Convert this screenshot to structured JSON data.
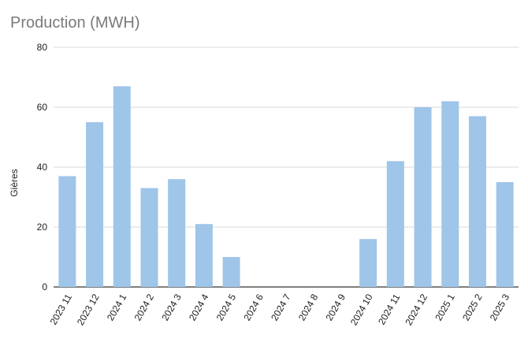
{
  "chart_data": {
    "type": "bar",
    "title": "Production (MWH)",
    "xlabel": "",
    "ylabel": "Gières",
    "ylim": [
      0,
      80
    ],
    "yticks": [
      0,
      20,
      40,
      60,
      80
    ],
    "grid": true,
    "categories": [
      "2023 11",
      "2023 12",
      "2024 1",
      "2024 2",
      "2024 3",
      "2024 4",
      "2024 5",
      "2024 6",
      "2024 7",
      "2024 8",
      "2024 9",
      "2024 10",
      "2024 11",
      "2024 12",
      "2025 1",
      "2025 2",
      "2025 3"
    ],
    "series": [
      {
        "values": [
          37,
          55,
          67,
          33,
          36,
          21,
          10,
          0,
          0,
          0,
          0,
          16,
          42,
          60,
          62,
          57,
          35
        ]
      }
    ],
    "colors": {
      "bar": "#9fc5e8",
      "grid": "#d9d9d9",
      "axis": "#333333"
    }
  }
}
